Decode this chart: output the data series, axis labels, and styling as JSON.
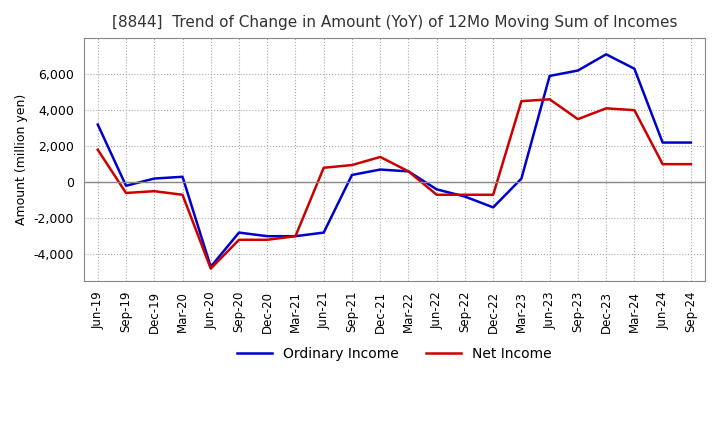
{
  "title": "[8844]  Trend of Change in Amount (YoY) of 12Mo Moving Sum of Incomes",
  "ylabel": "Amount (million yen)",
  "x_labels": [
    "Jun-19",
    "Sep-19",
    "Dec-19",
    "Mar-20",
    "Jun-20",
    "Sep-20",
    "Dec-20",
    "Mar-21",
    "Jun-21",
    "Sep-21",
    "Dec-21",
    "Mar-22",
    "Jun-22",
    "Sep-22",
    "Dec-22",
    "Mar-23",
    "Jun-23",
    "Sep-23",
    "Dec-23",
    "Mar-24",
    "Jun-24",
    "Sep-24"
  ],
  "ordinary_income": [
    3200,
    -200,
    200,
    300,
    -4700,
    -2800,
    -3000,
    -3000,
    -2800,
    400,
    700,
    600,
    -400,
    -800,
    -1400,
    200,
    5900,
    6200,
    7100,
    6300,
    2200,
    2200
  ],
  "net_income": [
    1800,
    -600,
    -500,
    -700,
    -4800,
    -3200,
    -3200,
    -3000,
    800,
    950,
    1400,
    600,
    -700,
    -700,
    -700,
    4500,
    4600,
    3500,
    4100,
    4000,
    1000,
    1000
  ],
  "ordinary_income_color": "#0000cc",
  "net_income_color": "#cc0000",
  "ylim": [
    -5500,
    8000
  ],
  "yticks": [
    -4000,
    -2000,
    0,
    2000,
    4000,
    6000
  ],
  "background_color": "#ffffff",
  "grid_color": "#aaaaaa",
  "title_fontsize": 11,
  "legend_labels": [
    "Ordinary Income",
    "Net Income"
  ],
  "linewidth": 1.8
}
